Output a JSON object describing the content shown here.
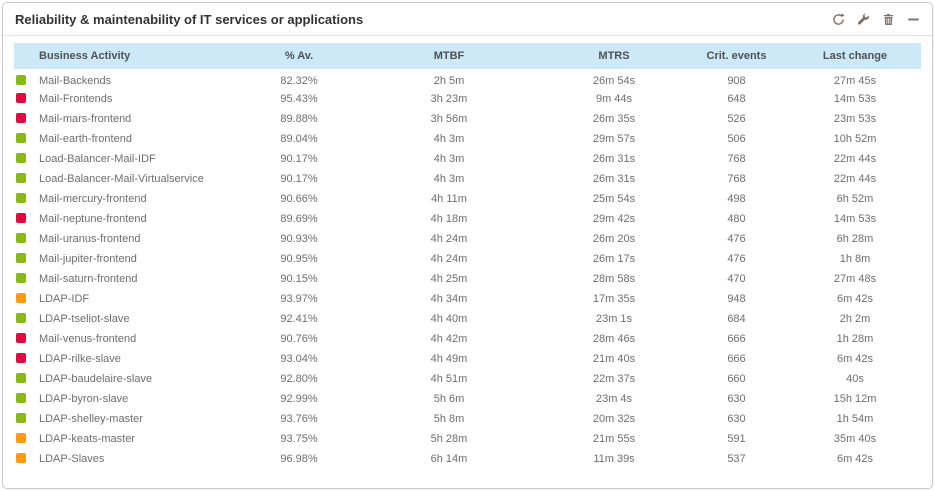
{
  "widget": {
    "title": "Reliability & maintenability of IT services or applications",
    "toolbar": [
      "refresh-icon",
      "wrench-icon",
      "trash-icon",
      "minimize-icon"
    ]
  },
  "colors": {
    "header_bg": "#cde8f7",
    "status": {
      "green": "#88b917",
      "red": "#e00b3d",
      "orange": "#ff9913"
    }
  },
  "table": {
    "columns": [
      "Business Activity",
      "% Av.",
      "MTBF",
      "MTRS",
      "Crit. events",
      "Last change"
    ],
    "rows": [
      {
        "status": "green",
        "name": "Mail-Backends",
        "availability": "82.32%",
        "mtbf": "2h 5m",
        "mtrs": "26m 54s",
        "crit_events": "908",
        "last_change": "27m 45s"
      },
      {
        "status": "red",
        "name": "Mail-Frontends",
        "availability": "95.43%",
        "mtbf": "3h 23m",
        "mtrs": "9m 44s",
        "crit_events": "648",
        "last_change": "14m 53s"
      },
      {
        "status": "red",
        "name": "Mail-mars-frontend",
        "availability": "89.88%",
        "mtbf": "3h 56m",
        "mtrs": "26m 35s",
        "crit_events": "526",
        "last_change": "23m 53s"
      },
      {
        "status": "green",
        "name": "Mail-earth-frontend",
        "availability": "89.04%",
        "mtbf": "4h 3m",
        "mtrs": "29m 57s",
        "crit_events": "506",
        "last_change": "10h 52m"
      },
      {
        "status": "green",
        "name": "Load-Balancer-Mail-IDF",
        "availability": "90.17%",
        "mtbf": "4h 3m",
        "mtrs": "26m 31s",
        "crit_events": "768",
        "last_change": "22m 44s"
      },
      {
        "status": "green",
        "name": "Load-Balancer-Mail-Virtualservice",
        "availability": "90.17%",
        "mtbf": "4h 3m",
        "mtrs": "26m 31s",
        "crit_events": "768",
        "last_change": "22m 44s"
      },
      {
        "status": "green",
        "name": "Mail-mercury-frontend",
        "availability": "90.66%",
        "mtbf": "4h 11m",
        "mtrs": "25m 54s",
        "crit_events": "498",
        "last_change": "6h 52m"
      },
      {
        "status": "red",
        "name": "Mail-neptune-frontend",
        "availability": "89.69%",
        "mtbf": "4h 18m",
        "mtrs": "29m 42s",
        "crit_events": "480",
        "last_change": "14m 53s"
      },
      {
        "status": "green",
        "name": "Mail-uranus-frontend",
        "availability": "90.93%",
        "mtbf": "4h 24m",
        "mtrs": "26m 20s",
        "crit_events": "476",
        "last_change": "6h 28m"
      },
      {
        "status": "green",
        "name": "Mail-jupiter-frontend",
        "availability": "90.95%",
        "mtbf": "4h 24m",
        "mtrs": "26m 17s",
        "crit_events": "476",
        "last_change": "1h 8m"
      },
      {
        "status": "green",
        "name": "Mail-saturn-frontend",
        "availability": "90.15%",
        "mtbf": "4h 25m",
        "mtrs": "28m 58s",
        "crit_events": "470",
        "last_change": "27m 48s"
      },
      {
        "status": "orange",
        "name": "LDAP-IDF",
        "availability": "93.97%",
        "mtbf": "4h 34m",
        "mtrs": "17m 35s",
        "crit_events": "948",
        "last_change": "6m 42s"
      },
      {
        "status": "green",
        "name": "LDAP-tseliot-slave",
        "availability": "92.41%",
        "mtbf": "4h 40m",
        "mtrs": "23m 1s",
        "crit_events": "684",
        "last_change": "2h 2m"
      },
      {
        "status": "red",
        "name": "Mail-venus-frontend",
        "availability": "90.76%",
        "mtbf": "4h 42m",
        "mtrs": "28m 46s",
        "crit_events": "666",
        "last_change": "1h 28m"
      },
      {
        "status": "red",
        "name": "LDAP-rilke-slave",
        "availability": "93.04%",
        "mtbf": "4h 49m",
        "mtrs": "21m 40s",
        "crit_events": "666",
        "last_change": "6m 42s"
      },
      {
        "status": "green",
        "name": "LDAP-baudelaire-slave",
        "availability": "92.80%",
        "mtbf": "4h 51m",
        "mtrs": "22m 37s",
        "crit_events": "660",
        "last_change": "40s"
      },
      {
        "status": "green",
        "name": "LDAP-byron-slave",
        "availability": "92.99%",
        "mtbf": "5h 6m",
        "mtrs": "23m 4s",
        "crit_events": "630",
        "last_change": "15h 12m"
      },
      {
        "status": "green",
        "name": "LDAP-shelley-master",
        "availability": "93.76%",
        "mtbf": "5h 8m",
        "mtrs": "20m 32s",
        "crit_events": "630",
        "last_change": "1h 54m"
      },
      {
        "status": "orange",
        "name": "LDAP-keats-master",
        "availability": "93.75%",
        "mtbf": "5h 28m",
        "mtrs": "21m 55s",
        "crit_events": "591",
        "last_change": "35m 40s"
      },
      {
        "status": "orange",
        "name": "LDAP-Slaves",
        "availability": "96.98%",
        "mtbf": "6h 14m",
        "mtrs": "11m 39s",
        "crit_events": "537",
        "last_change": "6m 42s"
      }
    ]
  }
}
